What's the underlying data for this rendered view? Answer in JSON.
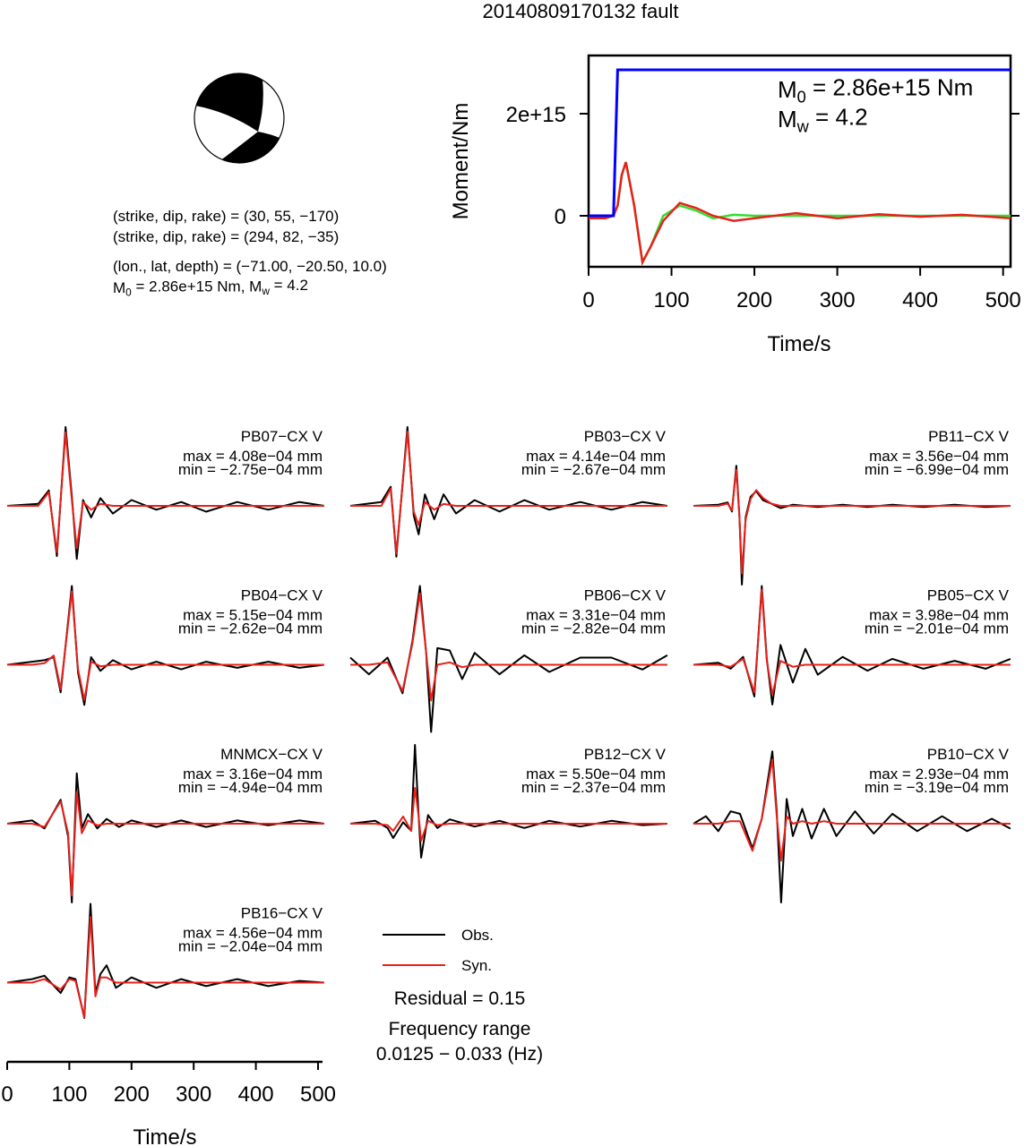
{
  "title": "20140809170132 fault",
  "mechanism": {
    "lines": [
      "(strike, dip, rake) = (30, 55, −170)",
      "(strike, dip, rake) = (294, 82, −35)",
      "(lon., lat, depth) = (−71.00, −20.50, 10.0)"
    ],
    "moment_line": [
      {
        "text": "M"
      },
      {
        "sub": "0"
      },
      {
        "text": " = 2.86e+15 Nm, M"
      },
      {
        "sub": "w"
      },
      {
        "text": " = 4.2"
      }
    ]
  },
  "chart_data": [
    {
      "type": "line",
      "xlabel": "Time/s",
      "ylabel": "Moment/Nm",
      "xlim": [
        0,
        509
      ],
      "ylim": [
        -1000000000000000.0,
        3140000000000000.0
      ],
      "xticks": [
        0,
        100,
        200,
        300,
        400,
        500
      ],
      "yticks": [
        0,
        {
          "value": 2000000000000000.0,
          "label": "2e+15"
        }
      ],
      "annotations": [
        [
          {
            "text": "M"
          },
          {
            "sub": "0"
          },
          {
            "text": " = 2.86e+15 Nm"
          }
        ],
        [
          {
            "text": "M"
          },
          {
            "sub": "w"
          },
          {
            "text": " = 4.2"
          }
        ]
      ],
      "x": [
        0,
        20,
        30,
        35,
        40,
        45,
        55,
        65,
        75,
        90,
        110,
        130,
        150,
        175,
        200,
        250,
        300,
        350,
        400,
        450,
        509
      ],
      "series": [
        {
          "color": "#0000ff",
          "values": [
            0,
            0,
            0,
            2860000000000000.0,
            2860000000000000.0,
            2860000000000000.0,
            2860000000000000.0,
            2860000000000000.0,
            2860000000000000.0,
            2860000000000000.0,
            2860000000000000.0,
            2860000000000000.0,
            2860000000000000.0,
            2860000000000000.0,
            2860000000000000.0,
            2860000000000000.0,
            2860000000000000.0,
            2860000000000000.0,
            2860000000000000.0,
            2860000000000000.0,
            2860000000000000.0
          ]
        },
        {
          "color": "#33dd33",
          "values": [
            -50000000000000.0,
            -50000000000000.0,
            0,
            200000000000000.0,
            800000000000000.0,
            1050000000000000.0,
            200000000000000.0,
            -910000000000000.0,
            -600000000000000.0,
            0,
            200000000000000.0,
            100000000000000.0,
            -50000000000000.0,
            20000000000000.0,
            0,
            0,
            0,
            0,
            0,
            0,
            0
          ]
        },
        {
          "color": "#e8201a",
          "values": [
            -50000000000000.0,
            -50000000000000.0,
            0,
            200000000000000.0,
            800000000000000.0,
            1050000000000000.0,
            200000000000000.0,
            -910000000000000.0,
            -600000000000000.0,
            -100000000000000.0,
            250000000000000.0,
            150000000000000.0,
            0,
            -100000000000000.0,
            -50000000000000.0,
            50000000000000.0,
            -50000000000000.0,
            30000000000000.0,
            -20000000000000.0,
            20000000000000.0,
            -50000000000000.0
          ]
        }
      ]
    },
    {
      "type": "waveforms",
      "xlabel": "Time/s",
      "xlim": [
        0,
        510
      ],
      "xticks": [
        0,
        100,
        200,
        300,
        400,
        500
      ],
      "legend": [
        {
          "name": "Obs.",
          "color": "#000000"
        },
        {
          "name": "Syn.",
          "color": "#e8201a"
        }
      ],
      "notes": [
        "Residual = 0.15",
        "Frequency range",
        "0.0125 − 0.033 (Hz)"
      ],
      "panels": [
        {
          "title": "PB07−CX V",
          "max_label": "max = 4.08e−04 mm",
          "min_label": "min = −2.75e−04 mm",
          "x": [
            0,
            50,
            67,
            80,
            94,
            104,
            112,
            122,
            135,
            150,
            170,
            200,
            240,
            280,
            320,
            370,
            420,
            470,
            510
          ],
          "obs": [
            0,
            1e-05,
            8e-05,
            -0.00026,
            0.000408,
            5e-05,
            -0.000275,
            3e-05,
            -6e-05,
            4e-05,
            -4e-05,
            3e-05,
            -2e-05,
            2e-05,
            -3e-05,
            2e-05,
            -2e-05,
            2e-05,
            0
          ],
          "syn": [
            0,
            0,
            7e-05,
            -0.00024,
            0.00038,
            3e-05,
            -0.00022,
            2e-05,
            -2e-05,
            1e-05,
            0,
            0,
            0,
            0,
            0,
            0,
            0,
            0,
            0
          ]
        },
        {
          "title": "PB03−CX V",
          "max_label": "max = 4.14e−04 mm",
          "min_label": "min = −2.67e−04 mm",
          "x": [
            0,
            50,
            65,
            74,
            92,
            102,
            110,
            120,
            135,
            150,
            170,
            200,
            240,
            280,
            320,
            370,
            420,
            470,
            510
          ],
          "obs": [
            0,
            2e-05,
            0.0001,
            -0.000267,
            0.000414,
            -5e-05,
            -0.00015,
            6e-05,
            -7e-05,
            6e-05,
            -4e-05,
            3e-05,
            -3e-05,
            3e-05,
            -2e-05,
            2e-05,
            -2e-05,
            2e-05,
            0
          ],
          "syn": [
            0,
            0,
            9e-05,
            -0.00025,
            0.00039,
            -3e-05,
            -0.0001,
            2e-05,
            -2e-05,
            1e-05,
            0,
            0,
            0,
            0,
            0,
            0,
            0,
            0,
            0
          ]
        },
        {
          "title": "PB11−CX V",
          "max_label": "max = 3.56e−04 mm",
          "min_label": "min = −6.99e−04 mm",
          "x": [
            0,
            40,
            55,
            62,
            69,
            74,
            78,
            84,
            92,
            101,
            112,
            125,
            140,
            160,
            200,
            240,
            280,
            320,
            370,
            420,
            470,
            510
          ],
          "obs": [
            0,
            1e-05,
            3e-05,
            -5e-05,
            0.000356,
            -0.0001,
            -0.000699,
            -0.0001,
            8e-05,
            0.00013,
            5e-05,
            2e-05,
            -2e-05,
            1e-05,
            -1e-05,
            1e-05,
            -1e-05,
            1e-05,
            -1e-05,
            1e-05,
            -1e-05,
            0
          ],
          "syn": [
            0,
            0,
            2e-05,
            -4e-05,
            0.00032,
            -0.0001,
            -0.0006,
            -0.00012,
            6e-05,
            0.00014,
            7e-05,
            2e-05,
            0,
            0,
            0,
            0,
            0,
            0,
            0,
            0,
            0,
            0
          ]
        },
        {
          "title": "PB04−CX V",
          "max_label": "max = 5.15e−04 mm",
          "min_label": "min = −2.62e−04 mm",
          "x": [
            0,
            40,
            60,
            75,
            86,
            104,
            114,
            124,
            135,
            150,
            170,
            200,
            240,
            280,
            320,
            370,
            420,
            470,
            510
          ],
          "obs": [
            0,
            2e-05,
            3e-05,
            5e-05,
            -0.00018,
            0.000515,
            -5e-05,
            -0.000262,
            5e-05,
            -4e-05,
            3e-05,
            -3e-05,
            2e-05,
            -3e-05,
            2e-05,
            -2e-05,
            2e-05,
            -2e-05,
            0
          ],
          "syn": [
            0,
            0,
            1e-05,
            6e-05,
            -0.00016,
            0.00048,
            -3e-05,
            -0.00023,
            2e-05,
            -1e-05,
            0,
            0,
            0,
            0,
            0,
            0,
            0,
            0,
            0
          ]
        },
        {
          "title": "PB06−CX V",
          "max_label": "max = 3.31e−04 mm",
          "min_label": "min = −2.82e−04 mm",
          "x": [
            0,
            30,
            60,
            84,
            100,
            112,
            122,
            130,
            140,
            160,
            180,
            200,
            240,
            280,
            320,
            370,
            420,
            470,
            510
          ],
          "obs": [
            3e-05,
            -4e-05,
            3e-05,
            -0.00012,
            0.0001,
            0.000331,
            5e-05,
            -0.000282,
            7e-05,
            6e-05,
            -6e-05,
            5e-05,
            -4e-05,
            4e-05,
            -3e-05,
            3e-05,
            3e-05,
            -2e-05,
            4e-05
          ],
          "syn": [
            0,
            0,
            1e-05,
            -0.00011,
            9e-05,
            0.0003,
            5e-05,
            -0.00015,
            0,
            1e-05,
            -1e-05,
            0,
            0,
            0,
            0,
            0,
            0,
            0,
            0
          ]
        },
        {
          "title": "PB05−CX V",
          "max_label": "max = 3.98e−04 mm",
          "min_label": "min = −2.01e−04 mm",
          "x": [
            0,
            40,
            60,
            80,
            98,
            110,
            118,
            127,
            140,
            160,
            180,
            200,
            240,
            280,
            320,
            370,
            420,
            470,
            510
          ],
          "obs": [
            0,
            1e-05,
            -2e-05,
            4e-05,
            -0.00016,
            0.000398,
            3e-05,
            -0.000201,
            0.0001,
            -9e-05,
            8e-05,
            -5e-05,
            4e-05,
            -3e-05,
            3e-05,
            -2e-05,
            2e-05,
            -2e-05,
            3e-05
          ],
          "syn": [
            0,
            0,
            -1e-05,
            3e-05,
            -0.00014,
            0.00038,
            2e-05,
            -0.00015,
            2e-05,
            -1e-05,
            0,
            0,
            0,
            0,
            0,
            0,
            0,
            0,
            0
          ]
        },
        {
          "title": "MNMCX−CX V",
          "max_label": "max = 3.16e−04 mm",
          "min_label": "min = −4.94e−04 mm",
          "x": [
            0,
            40,
            60,
            86,
            98,
            104,
            112,
            120,
            130,
            145,
            160,
            180,
            200,
            240,
            280,
            320,
            370,
            420,
            470,
            510
          ],
          "obs": [
            0,
            2e-05,
            -3e-05,
            0.00015,
            -8e-05,
            -0.000494,
            0.000316,
            -3e-05,
            6e-05,
            -3e-05,
            3e-05,
            -2e-05,
            2e-05,
            -2e-05,
            2e-05,
            -2e-05,
            2e-05,
            -1e-05,
            2e-05,
            0
          ],
          "syn": [
            0,
            0,
            -2e-05,
            0.00014,
            -6e-05,
            -0.00045,
            0.0002,
            -6e-05,
            2e-05,
            -1e-05,
            0,
            0,
            0,
            0,
            0,
            0,
            0,
            0,
            0,
            0
          ]
        },
        {
          "title": "PB12−CX V",
          "max_label": "max = 5.50e−04 mm",
          "min_label": "min = −2.37e−04 mm",
          "x": [
            0,
            40,
            60,
            69,
            85,
            98,
            104,
            110,
            114,
            125,
            140,
            160,
            200,
            240,
            280,
            320,
            370,
            420,
            470,
            510
          ],
          "obs": [
            0,
            2e-05,
            -3e-05,
            -0.0001,
            1e-05,
            -5e-05,
            0.00055,
            5e-05,
            -0.000237,
            6e-05,
            -3e-05,
            3e-05,
            -2e-05,
            2e-05,
            -3e-05,
            2e-05,
            -2e-05,
            2e-05,
            -1e-05,
            0
          ],
          "syn": [
            0,
            0,
            -1e-05,
            -5e-05,
            5e-05,
            -5e-05,
            0.00025,
            5e-05,
            -0.00012,
            2e-05,
            -1e-05,
            0,
            0,
            0,
            0,
            0,
            0,
            0,
            0,
            0
          ]
        },
        {
          "title": "PB10−CX V",
          "max_label": "max = 2.93e−04 mm",
          "min_label": "min = −3.19e−04 mm",
          "x": [
            0,
            20,
            40,
            60,
            75,
            95,
            110,
            127,
            134,
            141,
            150,
            160,
            175,
            190,
            210,
            230,
            260,
            290,
            320,
            360,
            400,
            440,
            480,
            510
          ],
          "obs": [
            0,
            3e-05,
            -3e-05,
            5e-05,
            4e-05,
            -0.0001,
            2e-05,
            0.000293,
            5e-05,
            -0.000319,
            0.0001,
            -5e-05,
            6e-05,
            -6e-05,
            6e-05,
            -5e-05,
            5e-05,
            -4e-05,
            4e-05,
            -3e-05,
            3e-05,
            -3e-05,
            2e-05,
            -2e-05
          ],
          "syn": [
            0,
            0,
            0,
            1e-05,
            1e-05,
            -0.00011,
            2e-05,
            0.00026,
            3e-05,
            -0.00015,
            3e-05,
            0,
            1e-05,
            0,
            1e-05,
            0,
            0,
            0,
            0,
            0,
            0,
            0,
            0,
            0
          ]
        },
        {
          "title": "PB16−CX V",
          "max_label": "max = 4.56e−04 mm",
          "min_label": "min = −2.04e−04 mm",
          "x": [
            0,
            40,
            60,
            86,
            100,
            110,
            124,
            134,
            142,
            150,
            160,
            175,
            200,
            240,
            280,
            320,
            370,
            420,
            470,
            510
          ],
          "obs": [
            0,
            2e-05,
            4e-05,
            -6e-05,
            3e-05,
            2e-05,
            -0.000204,
            0.000456,
            -6e-05,
            5e-05,
            0.0001,
            -3e-05,
            3e-05,
            -3e-05,
            2e-05,
            -2e-05,
            2e-05,
            -2e-05,
            1e-05,
            0
          ],
          "syn": [
            0,
            0,
            2e-05,
            -4e-05,
            2e-05,
            1e-05,
            -0.0002,
            0.00038,
            -8e-05,
            3e-05,
            3e-05,
            0,
            0,
            0,
            0,
            0,
            0,
            0,
            0,
            0
          ]
        }
      ]
    }
  ]
}
